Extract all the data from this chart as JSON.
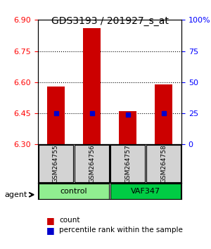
{
  "title": "GDS3193 / 201927_s_at",
  "samples": [
    "GSM264755",
    "GSM264756",
    "GSM264757",
    "GSM264758"
  ],
  "groups": [
    "control",
    "control",
    "VAF347",
    "VAF347"
  ],
  "group_labels": [
    "control",
    "VAF347"
  ],
  "group_colors": [
    "#90EE90",
    "#00CC00"
  ],
  "bar_values": [
    6.58,
    6.86,
    6.46,
    6.59
  ],
  "bar_base": 6.3,
  "percentile_values": [
    6.45,
    6.45,
    6.445,
    6.45
  ],
  "ylim_left": [
    6.3,
    6.9
  ],
  "ylim_right": [
    0,
    100
  ],
  "yticks_left": [
    6.3,
    6.45,
    6.6,
    6.75,
    6.9
  ],
  "yticks_right": [
    0,
    25,
    50,
    75,
    100
  ],
  "ytick_labels_right": [
    "0",
    "25",
    "50",
    "75",
    "100%"
  ],
  "hlines": [
    6.45,
    6.6,
    6.75
  ],
  "bar_color": "#CC0000",
  "percentile_color": "#0000CC",
  "background_color": "#ffffff",
  "plot_bg_color": "#ffffff",
  "agent_label": "agent",
  "legend_count": "count",
  "legend_percentile": "percentile rank within the sample"
}
